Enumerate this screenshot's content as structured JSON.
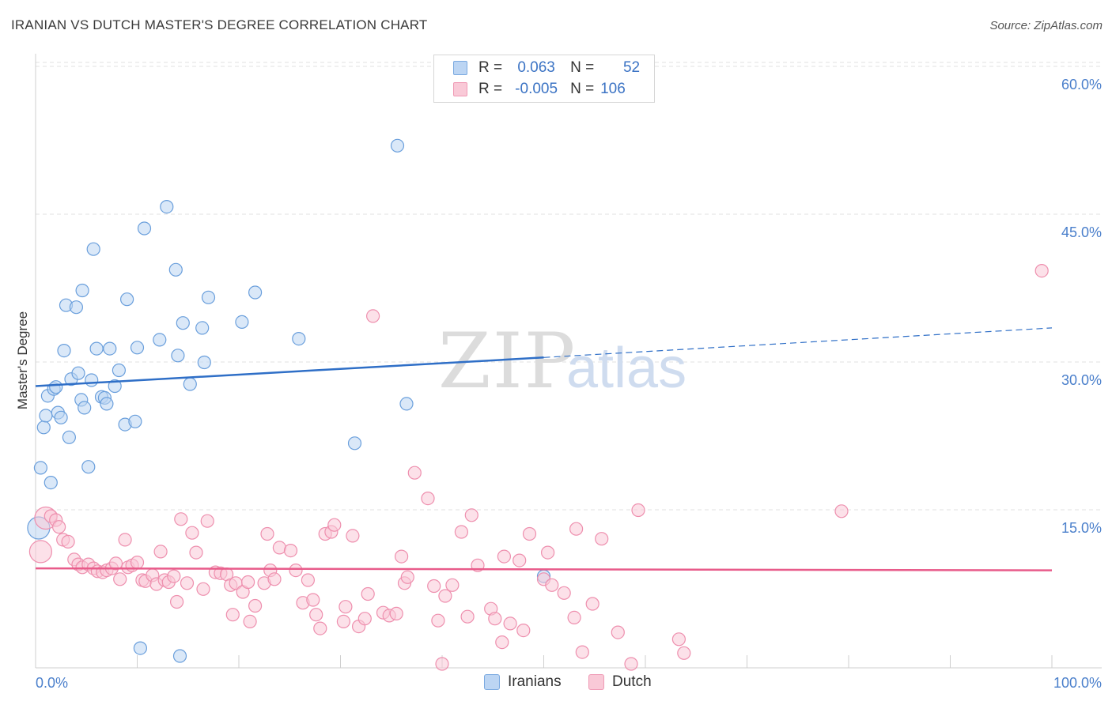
{
  "header": {
    "title": "IRANIAN VS DUTCH MASTER'S DEGREE CORRELATION CHART",
    "source": "Source: ZipAtlas.com"
  },
  "watermark": {
    "zip": "ZIP",
    "atlas": "atlas"
  },
  "stats_legend": {
    "rows": [
      {
        "r_label": "R =",
        "r_value": "0.063",
        "n_label": "N =",
        "n_value": "52",
        "color": "#a9c8f0"
      },
      {
        "r_label": "R =",
        "r_value": "-0.005",
        "n_label": "N =",
        "n_value": "106",
        "color": "#f7b6c8"
      }
    ]
  },
  "chart_data": {
    "type": "scatter",
    "title": "IRANIAN VS DUTCH MASTER'S DEGREE CORRELATION CHART",
    "xlabel": "",
    "ylabel": "Master's Degree",
    "xlim": [
      0,
      100
    ],
    "ylim": [
      0,
      60
    ],
    "x_tick_labels": [
      "0.0%",
      "100.0%"
    ],
    "y_ticks": [
      15,
      30,
      45,
      60
    ],
    "y_tick_labels": [
      "15.0%",
      "30.0%",
      "45.0%",
      "60.0%"
    ],
    "grid": "horizontal dashed",
    "legend_position": "bottom",
    "series": [
      {
        "name": "Iranians",
        "color": "#6a9fdc",
        "fill": "#bcd5f3",
        "trend": {
          "x_start": 0,
          "y_start": 28.6,
          "x_end": 50,
          "y_end": 31.5,
          "dashed_to_x": 100,
          "dashed_to_y": 34.5
        },
        "points": [
          [
            0.3,
            14.2
          ],
          [
            0.5,
            20.3
          ],
          [
            0.8,
            24.4
          ],
          [
            1.0,
            25.6
          ],
          [
            1.2,
            27.6
          ],
          [
            1.5,
            18.8
          ],
          [
            1.8,
            28.3
          ],
          [
            2.0,
            28.5
          ],
          [
            2.2,
            25.9
          ],
          [
            2.5,
            25.4
          ],
          [
            2.8,
            32.2
          ],
          [
            3.0,
            36.8
          ],
          [
            3.3,
            23.4
          ],
          [
            3.5,
            29.3
          ],
          [
            4.0,
            36.6
          ],
          [
            4.2,
            29.9
          ],
          [
            4.5,
            27.2
          ],
          [
            4.6,
            38.3
          ],
          [
            4.8,
            26.4
          ],
          [
            5.2,
            20.4
          ],
          [
            5.5,
            29.2
          ],
          [
            5.7,
            42.5
          ],
          [
            6.0,
            32.4
          ],
          [
            6.5,
            27.5
          ],
          [
            6.8,
            27.4
          ],
          [
            7.0,
            26.8
          ],
          [
            7.3,
            32.4
          ],
          [
            7.8,
            28.6
          ],
          [
            8.2,
            30.2
          ],
          [
            8.8,
            24.7
          ],
          [
            9.0,
            37.4
          ],
          [
            9.8,
            25.0
          ],
          [
            10.0,
            32.5
          ],
          [
            10.3,
            2.0
          ],
          [
            10.7,
            44.6
          ],
          [
            12.2,
            33.3
          ],
          [
            12.9,
            46.8
          ],
          [
            13.8,
            40.4
          ],
          [
            14.0,
            31.7
          ],
          [
            14.2,
            1.2
          ],
          [
            14.5,
            35.0
          ],
          [
            15.2,
            28.8
          ],
          [
            16.4,
            34.5
          ],
          [
            16.6,
            31.0
          ],
          [
            17.0,
            37.6
          ],
          [
            20.3,
            35.1
          ],
          [
            21.6,
            38.1
          ],
          [
            25.9,
            33.4
          ],
          [
            31.4,
            22.8
          ],
          [
            35.6,
            53.0
          ],
          [
            36.5,
            26.8
          ],
          [
            50.0,
            9.3
          ]
        ]
      },
      {
        "name": "Dutch",
        "color": "#ee8fae",
        "fill": "#f9c9d7",
        "trend": {
          "x_start": 0,
          "y_start": 10.1,
          "x_end": 100,
          "y_end": 9.9
        },
        "points": [
          [
            0.5,
            11.8
          ],
          [
            1.0,
            15.2
          ],
          [
            1.5,
            15.4
          ],
          [
            2.0,
            15.0
          ],
          [
            2.3,
            14.3
          ],
          [
            2.7,
            13.0
          ],
          [
            3.2,
            12.8
          ],
          [
            3.8,
            11.0
          ],
          [
            4.2,
            10.5
          ],
          [
            4.6,
            10.2
          ],
          [
            5.2,
            10.5
          ],
          [
            5.7,
            10.1
          ],
          [
            6.1,
            9.8
          ],
          [
            6.6,
            9.7
          ],
          [
            7.0,
            9.9
          ],
          [
            7.5,
            10.1
          ],
          [
            7.9,
            10.6
          ],
          [
            8.3,
            9.0
          ],
          [
            8.8,
            13.0
          ],
          [
            9.1,
            10.2
          ],
          [
            9.5,
            10.4
          ],
          [
            10.0,
            10.7
          ],
          [
            10.5,
            8.9
          ],
          [
            10.8,
            8.8
          ],
          [
            11.5,
            9.4
          ],
          [
            11.9,
            8.5
          ],
          [
            12.3,
            11.8
          ],
          [
            12.7,
            8.9
          ],
          [
            13.1,
            8.7
          ],
          [
            13.6,
            9.3
          ],
          [
            13.9,
            6.7
          ],
          [
            14.3,
            15.1
          ],
          [
            14.9,
            8.6
          ],
          [
            15.4,
            13.7
          ],
          [
            15.8,
            11.7
          ],
          [
            16.5,
            8.0
          ],
          [
            16.9,
            14.9
          ],
          [
            17.7,
            9.7
          ],
          [
            18.2,
            9.6
          ],
          [
            18.8,
            9.5
          ],
          [
            19.2,
            8.4
          ],
          [
            19.4,
            5.4
          ],
          [
            19.7,
            8.6
          ],
          [
            20.4,
            7.7
          ],
          [
            20.9,
            8.7
          ],
          [
            21.1,
            4.7
          ],
          [
            21.6,
            6.3
          ],
          [
            22.5,
            8.6
          ],
          [
            22.8,
            13.6
          ],
          [
            23.1,
            9.9
          ],
          [
            23.5,
            9.0
          ],
          [
            24.0,
            12.2
          ],
          [
            25.1,
            11.9
          ],
          [
            25.6,
            9.9
          ],
          [
            26.3,
            6.6
          ],
          [
            26.8,
            8.9
          ],
          [
            27.3,
            6.9
          ],
          [
            27.6,
            5.4
          ],
          [
            28.0,
            4.0
          ],
          [
            28.5,
            13.6
          ],
          [
            29.1,
            13.8
          ],
          [
            29.4,
            14.5
          ],
          [
            30.3,
            4.7
          ],
          [
            30.5,
            6.2
          ],
          [
            31.2,
            13.4
          ],
          [
            31.8,
            4.2
          ],
          [
            32.4,
            5.0
          ],
          [
            32.7,
            7.5
          ],
          [
            33.2,
            35.7
          ],
          [
            34.2,
            5.6
          ],
          [
            34.8,
            5.3
          ],
          [
            35.5,
            5.5
          ],
          [
            36.0,
            11.3
          ],
          [
            36.3,
            8.6
          ],
          [
            36.6,
            9.2
          ],
          [
            37.3,
            19.8
          ],
          [
            38.6,
            17.2
          ],
          [
            39.2,
            8.3
          ],
          [
            39.6,
            4.8
          ],
          [
            40.0,
            0.4
          ],
          [
            40.3,
            7.3
          ],
          [
            41.0,
            8.4
          ],
          [
            41.9,
            13.8
          ],
          [
            42.5,
            5.2
          ],
          [
            42.9,
            15.5
          ],
          [
            43.5,
            10.4
          ],
          [
            44.8,
            6.0
          ],
          [
            45.2,
            5.0
          ],
          [
            45.9,
            2.6
          ],
          [
            46.1,
            11.3
          ],
          [
            46.7,
            4.5
          ],
          [
            47.6,
            10.9
          ],
          [
            48.0,
            3.8
          ],
          [
            48.6,
            13.6
          ],
          [
            50.0,
            9.0
          ],
          [
            50.4,
            11.7
          ],
          [
            50.8,
            8.4
          ],
          [
            52.0,
            7.6
          ],
          [
            53.0,
            5.1
          ],
          [
            53.2,
            14.1
          ],
          [
            53.8,
            1.6
          ],
          [
            54.8,
            6.5
          ],
          [
            55.7,
            13.1
          ],
          [
            57.3,
            3.6
          ],
          [
            58.6,
            0.4
          ],
          [
            59.3,
            16.0
          ],
          [
            63.3,
            2.9
          ],
          [
            63.8,
            1.5
          ],
          [
            79.3,
            15.9
          ],
          [
            99.0,
            40.3
          ]
        ]
      }
    ]
  }
}
